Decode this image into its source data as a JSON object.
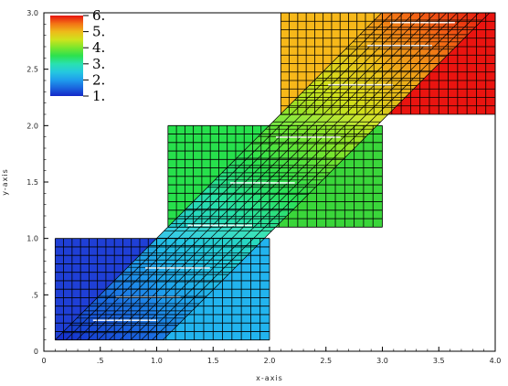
{
  "chart_data": {
    "type": "heatmap",
    "title": "",
    "xlabel": "x-axis",
    "ylabel": "y-axis",
    "xlim": [
      0,
      4
    ],
    "ylim": [
      0,
      3
    ],
    "x_ticks": [
      0,
      0.5,
      1,
      1.5,
      2,
      2.5,
      3,
      3.5,
      4
    ],
    "x_tick_labels": [
      "0",
      ".5",
      "1.0",
      "1.5",
      "2.0",
      "2.5",
      "3.0",
      "3.5",
      "4.0"
    ],
    "y_ticks": [
      0,
      0.5,
      1,
      1.5,
      2,
      2.5,
      3
    ],
    "y_tick_labels": [
      "0",
      ".5",
      "1.0",
      "1.5",
      "2.0",
      "2.5",
      "3.0"
    ],
    "grid": false,
    "legend_position": "top-left",
    "colorbar": {
      "min": 1,
      "max": 6,
      "tick_values": [
        6,
        5,
        4,
        3,
        2,
        1
      ],
      "tick_labels": [
        "6.",
        "5.",
        "4.",
        "3.",
        "2.",
        "1."
      ]
    },
    "field": "value increases from 1 at the lower-left block to 6 at the upper-right block",
    "blocks": [
      {
        "name": "block-1",
        "x_range": [
          0.1,
          1.0
        ],
        "y_range": [
          0.1,
          1.0
        ],
        "value": 1.0,
        "color": "#1f3fd6"
      },
      {
        "name": "block-2",
        "x_range": [
          1.0,
          2.0
        ],
        "y_range": [
          0.1,
          1.0
        ],
        "value": 2.0,
        "color": "#22b4ee"
      },
      {
        "name": "block-3",
        "x_range": [
          1.1,
          2.0
        ],
        "y_range": [
          1.1,
          2.0
        ],
        "value": 3.5,
        "color": "#27e04c"
      },
      {
        "name": "block-4",
        "x_range": [
          2.0,
          3.0
        ],
        "y_range": [
          1.1,
          2.0
        ],
        "value": 3.7,
        "color": "#3ad63a"
      },
      {
        "name": "block-5",
        "x_range": [
          2.1,
          3.0
        ],
        "y_range": [
          2.1,
          3.0
        ],
        "value": 5.5,
        "color": "#f7b81a"
      },
      {
        "name": "block-6",
        "x_range": [
          3.0,
          4.0
        ],
        "y_range": [
          2.1,
          3.0
        ],
        "value": 6.0,
        "color": "#ea1410"
      }
    ],
    "overlay_band": {
      "description": "diagonal gradient strip across the blocks",
      "from": [
        0.1,
        0.1
      ],
      "to": [
        3.95,
        3.0
      ]
    }
  }
}
